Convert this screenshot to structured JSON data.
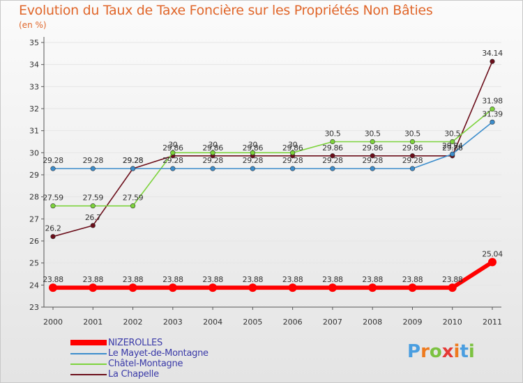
{
  "header": {
    "title": "Evolution du Taux de Taxe Foncière sur les Propriétés Non Bâties",
    "unit": "(en %)"
  },
  "chart_data": {
    "type": "line",
    "title": "Evolution du Taux de Taxe Foncière sur les Propriétés Non Bâties",
    "ylabel": "(en %)",
    "xlabel": "",
    "x": [
      "2000",
      "2001",
      "2002",
      "2003",
      "2004",
      "2005",
      "2006",
      "2007",
      "2008",
      "2009",
      "2010",
      "2011"
    ],
    "ylim": [
      23,
      35
    ],
    "yticks": [
      "23",
      "24",
      "25",
      "26",
      "27",
      "28",
      "29",
      "30",
      "31",
      "32",
      "33",
      "34",
      "35"
    ],
    "legend_position": "bottom-left",
    "series": [
      {
        "name": "NIZEROLLES",
        "color": "#ff0000",
        "labels_position": "above",
        "values": [
          23.88,
          23.88,
          23.88,
          23.88,
          23.88,
          23.88,
          23.88,
          23.88,
          23.88,
          23.88,
          23.88,
          25.04
        ],
        "labels": [
          "23.88",
          "23.88",
          "23.88",
          "23.88",
          "23.88",
          "23.88",
          "23.88",
          "23.88",
          "23.88",
          "23.88",
          "23.88",
          "25.04"
        ]
      },
      {
        "name": "Le Mayet-de-Montagne",
        "color": "#3c8dcc",
        "labels_position": "above",
        "values": [
          29.28,
          29.28,
          29.28,
          29.28,
          29.28,
          29.28,
          29.28,
          29.28,
          29.28,
          29.28,
          29.94,
          31.39
        ],
        "labels": [
          "29.28",
          "29.28",
          "29.28",
          "29.28",
          "29.28",
          "29.28",
          "29.28",
          "29.28",
          "29.28",
          "29.28",
          "29.94",
          "31.39"
        ]
      },
      {
        "name": "Châtel-Montagne",
        "color": "#7dd33c",
        "labels_position": "above",
        "values": [
          27.59,
          27.59,
          27.59,
          30,
          30,
          30,
          30,
          30.5,
          30.5,
          30.5,
          30.5,
          31.98
        ],
        "labels": [
          "27.59",
          "27.59",
          "27.59",
          "30",
          "30",
          "30",
          "30",
          "30.5",
          "30.5",
          "30.5",
          "30.5",
          "31.98"
        ]
      },
      {
        "name": "La Chapelle",
        "color": "#6b0e1a",
        "labels_position": "above",
        "values": [
          26.2,
          26.7,
          29.28,
          29.86,
          29.86,
          29.86,
          29.86,
          29.86,
          29.86,
          29.86,
          29.86,
          34.14
        ],
        "labels": [
          "26.2",
          "26.7",
          "29.28",
          "29.86",
          "29.86",
          "29.86",
          "29.86",
          "29.86",
          "29.86",
          "29.86",
          "29.86",
          "34.14"
        ]
      }
    ]
  },
  "legend": {
    "items": [
      "NIZEROLLES",
      "Le Mayet-de-Montagne",
      "Châtel-Montagne",
      "La Chapelle"
    ]
  },
  "logo": {
    "letters": [
      "P",
      "r",
      "o",
      "x",
      "i",
      "t",
      "i"
    ],
    "colors": [
      "#4a9ee0",
      "#ee7a1e",
      "#7cc241",
      "#e53935",
      "#ee7a1e",
      "#4a9ee0",
      "#7cc241"
    ]
  }
}
